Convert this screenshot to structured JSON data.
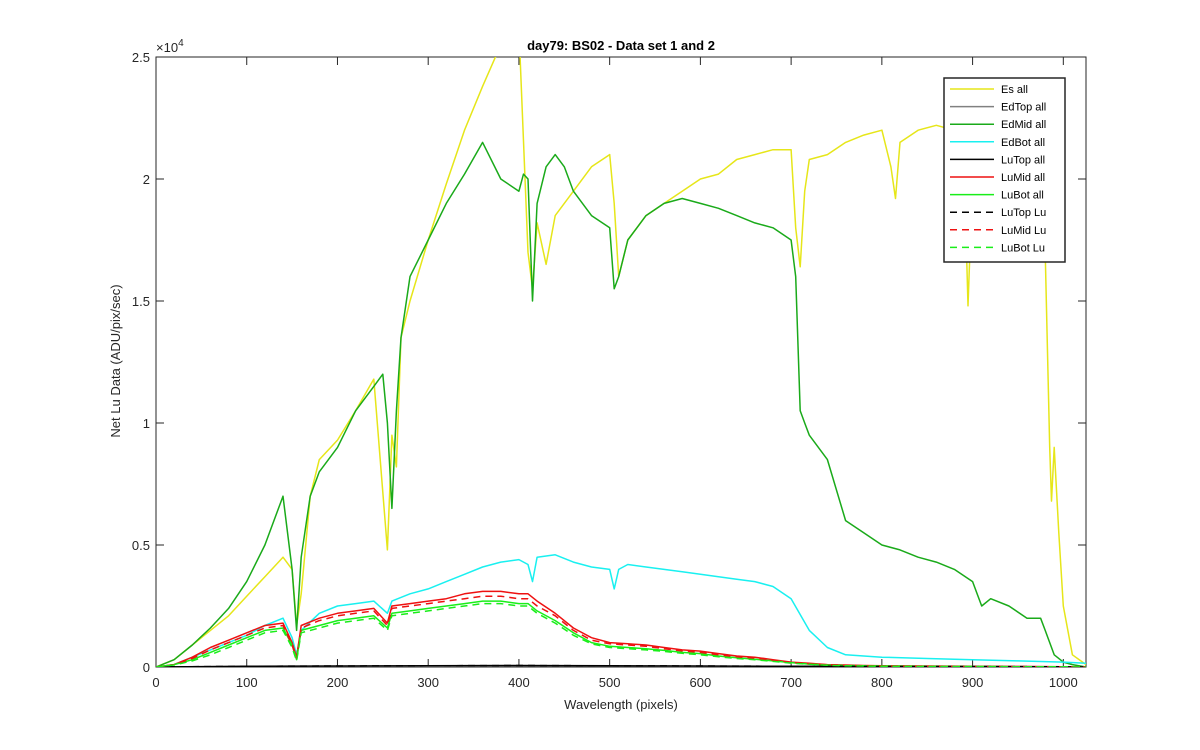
{
  "chart_data": {
    "type": "line",
    "title": "day79: BS02 - Data set 1 and 2",
    "xlabel": "Wavelength (pixels)",
    "ylabel": "Net Lu Data (ADU/pix/sec)",
    "y_exponent_base": "×10",
    "y_exponent_power": "4",
    "xlim": [
      0,
      1025
    ],
    "ylim": [
      0,
      2.5
    ],
    "xticks": [
      0,
      100,
      200,
      300,
      400,
      500,
      600,
      700,
      800,
      900,
      1000
    ],
    "xtick_labels": [
      "0",
      "100",
      "200",
      "300",
      "400",
      "500",
      "600",
      "700",
      "800",
      "900",
      "1000"
    ],
    "yticks": [
      0,
      0.5,
      1,
      1.5,
      2,
      2.5
    ],
    "ytick_labels": [
      "0",
      "0.5",
      "1",
      "1.5",
      "2",
      "2.5"
    ],
    "grid": false,
    "legend_position": "top-right",
    "series": [
      {
        "name": "Es  all",
        "color": "#e6e619",
        "dash": "solid",
        "x": [
          0,
          20,
          40,
          60,
          80,
          100,
          120,
          140,
          150,
          155,
          160,
          170,
          180,
          200,
          220,
          240,
          255,
          260,
          265,
          270,
          280,
          300,
          320,
          340,
          360,
          380,
          400,
          410,
          415,
          420,
          430,
          440,
          460,
          480,
          500,
          505,
          510,
          520,
          540,
          560,
          580,
          600,
          620,
          640,
          660,
          680,
          700,
          705,
          710,
          715,
          720,
          740,
          760,
          780,
          800,
          810,
          815,
          820,
          840,
          860,
          880,
          890,
          895,
          898,
          900,
          905,
          920,
          940,
          960,
          970,
          975,
          980,
          985,
          987,
          990,
          995,
          1000,
          1010,
          1025
        ],
        "y": [
          0,
          0.03,
          0.09,
          0.15,
          0.21,
          0.29,
          0.37,
          0.45,
          0.4,
          0.17,
          0.3,
          0.7,
          0.85,
          0.93,
          1.05,
          1.18,
          0.48,
          0.95,
          0.82,
          1.35,
          1.5,
          1.75,
          1.98,
          2.2,
          2.38,
          2.55,
          2.62,
          1.7,
          1.55,
          1.82,
          1.65,
          1.85,
          1.95,
          2.05,
          2.1,
          1.9,
          1.6,
          1.75,
          1.85,
          1.9,
          1.95,
          2.0,
          2.02,
          2.08,
          2.1,
          2.12,
          2.12,
          1.8,
          1.64,
          1.95,
          2.08,
          2.1,
          2.15,
          2.18,
          2.2,
          2.05,
          1.92,
          2.15,
          2.2,
          2.22,
          2.2,
          2.15,
          1.48,
          1.8,
          2.1,
          2.15,
          2.12,
          2.15,
          2.15,
          2.05,
          1.9,
          1.7,
          0.9,
          0.68,
          0.9,
          0.55,
          0.25,
          0.05,
          0.01
        ],
        "y_scale_note": "values are ×10^4"
      },
      {
        "name": "EdTop  all",
        "color": "#808080",
        "dash": "solid",
        "x": [
          0,
          100,
          200,
          300,
          400,
          500,
          600,
          700,
          800,
          900,
          1000,
          1025
        ],
        "y": [
          0,
          0.001,
          0.002,
          0.003,
          0.004,
          0.004,
          0.003,
          0.002,
          0.001,
          0.001,
          0,
          0
        ]
      },
      {
        "name": "EdMid  all",
        "color": "#1aaa1a",
        "dash": "solid",
        "x": [
          0,
          20,
          40,
          60,
          80,
          100,
          120,
          140,
          150,
          155,
          160,
          170,
          180,
          200,
          220,
          240,
          250,
          255,
          260,
          265,
          270,
          280,
          300,
          320,
          340,
          360,
          380,
          400,
          405,
          410,
          415,
          420,
          430,
          440,
          450,
          460,
          480,
          500,
          505,
          510,
          520,
          540,
          560,
          580,
          600,
          620,
          640,
          660,
          680,
          700,
          705,
          710,
          715,
          720,
          740,
          760,
          780,
          800,
          820,
          840,
          860,
          880,
          900,
          905,
          910,
          920,
          940,
          960,
          975,
          980,
          990,
          1000,
          1010,
          1025
        ],
        "y": [
          0,
          0.03,
          0.09,
          0.16,
          0.24,
          0.35,
          0.5,
          0.7,
          0.4,
          0.15,
          0.45,
          0.7,
          0.8,
          0.9,
          1.05,
          1.15,
          1.2,
          1.0,
          0.65,
          1.05,
          1.35,
          1.6,
          1.75,
          1.9,
          2.02,
          2.15,
          2.0,
          1.95,
          2.02,
          2.0,
          1.5,
          1.9,
          2.05,
          2.1,
          2.05,
          1.95,
          1.85,
          1.8,
          1.55,
          1.6,
          1.75,
          1.85,
          1.9,
          1.92,
          1.9,
          1.88,
          1.85,
          1.82,
          1.8,
          1.75,
          1.6,
          1.05,
          1.0,
          0.95,
          0.85,
          0.6,
          0.55,
          0.5,
          0.48,
          0.45,
          0.43,
          0.4,
          0.35,
          0.3,
          0.25,
          0.28,
          0.25,
          0.2,
          0.2,
          0.15,
          0.05,
          0.02,
          0.01,
          0
        ],
        "y_scale_note": "values are ×10^4"
      },
      {
        "name": "EdBot  all",
        "color": "#19f0f0",
        "dash": "solid",
        "x": [
          0,
          20,
          40,
          60,
          80,
          100,
          120,
          140,
          150,
          155,
          160,
          180,
          200,
          220,
          240,
          255,
          260,
          280,
          300,
          320,
          340,
          360,
          380,
          400,
          410,
          415,
          420,
          440,
          460,
          480,
          500,
          505,
          510,
          520,
          540,
          560,
          580,
          600,
          620,
          640,
          660,
          680,
          700,
          720,
          740,
          760,
          780,
          800,
          850,
          900,
          950,
          1000,
          1025
        ],
        "y": [
          0,
          0.01,
          0.04,
          0.07,
          0.1,
          0.13,
          0.17,
          0.2,
          0.12,
          0.05,
          0.15,
          0.22,
          0.25,
          0.26,
          0.27,
          0.22,
          0.27,
          0.3,
          0.32,
          0.35,
          0.38,
          0.41,
          0.43,
          0.44,
          0.42,
          0.35,
          0.45,
          0.46,
          0.43,
          0.41,
          0.4,
          0.32,
          0.4,
          0.42,
          0.41,
          0.4,
          0.39,
          0.38,
          0.37,
          0.36,
          0.35,
          0.33,
          0.28,
          0.15,
          0.08,
          0.05,
          0.045,
          0.04,
          0.035,
          0.03,
          0.025,
          0.02,
          0.015
        ],
        "y_scale_note": "values are ×10^4"
      },
      {
        "name": "LuTop  all",
        "color": "#000000",
        "dash": "solid",
        "x": [
          0,
          100,
          200,
          300,
          400,
          500,
          600,
          700,
          800,
          900,
          1000,
          1025
        ],
        "y": [
          0,
          0.003,
          0.004,
          0.005,
          0.006,
          0.005,
          0.004,
          0.003,
          0.002,
          0.002,
          0.001,
          0
        ]
      },
      {
        "name": "LuMid  all",
        "color": "#ee1111",
        "dash": "solid",
        "x": [
          0,
          20,
          40,
          60,
          80,
          100,
          120,
          140,
          150,
          155,
          160,
          180,
          200,
          220,
          240,
          255,
          260,
          280,
          300,
          320,
          340,
          360,
          380,
          400,
          410,
          420,
          440,
          460,
          480,
          500,
          520,
          540,
          560,
          580,
          600,
          620,
          640,
          660,
          680,
          700,
          720,
          740,
          760,
          780,
          800,
          850,
          900,
          950,
          1000,
          1025
        ],
        "y": [
          0,
          0.01,
          0.04,
          0.08,
          0.11,
          0.14,
          0.17,
          0.18,
          0.1,
          0.04,
          0.17,
          0.2,
          0.22,
          0.23,
          0.24,
          0.18,
          0.25,
          0.26,
          0.27,
          0.28,
          0.3,
          0.31,
          0.31,
          0.3,
          0.3,
          0.27,
          0.22,
          0.16,
          0.12,
          0.1,
          0.095,
          0.09,
          0.08,
          0.07,
          0.065,
          0.055,
          0.045,
          0.04,
          0.03,
          0.02,
          0.015,
          0.01,
          0.008,
          0.006,
          0.005,
          0.004,
          0.003,
          0.002,
          0.001,
          0
        ]
      },
      {
        "name": "LuBot  all",
        "color": "#19ee19",
        "dash": "solid",
        "x": [
          0,
          20,
          40,
          60,
          80,
          100,
          120,
          140,
          150,
          155,
          160,
          180,
          200,
          220,
          240,
          255,
          260,
          280,
          300,
          320,
          340,
          360,
          380,
          400,
          410,
          420,
          440,
          460,
          480,
          500,
          520,
          540,
          560,
          580,
          600,
          620,
          640,
          660,
          680,
          700,
          720,
          740,
          760,
          780,
          800,
          850,
          900,
          950,
          1000,
          1025
        ],
        "y": [
          0,
          0.01,
          0.03,
          0.06,
          0.09,
          0.12,
          0.15,
          0.16,
          0.09,
          0.03,
          0.15,
          0.17,
          0.19,
          0.2,
          0.21,
          0.16,
          0.22,
          0.23,
          0.24,
          0.25,
          0.26,
          0.27,
          0.27,
          0.26,
          0.26,
          0.23,
          0.19,
          0.14,
          0.1,
          0.085,
          0.08,
          0.075,
          0.068,
          0.06,
          0.055,
          0.045,
          0.038,
          0.032,
          0.025,
          0.018,
          0.012,
          0.008,
          0.006,
          0.005,
          0.004,
          0.003,
          0.002,
          0.001,
          0.001,
          0
        ]
      },
      {
        "name": "LuTop  Lu",
        "color": "#000000",
        "dash": "dashed",
        "x": [
          0,
          100,
          200,
          300,
          400,
          500,
          600,
          700,
          800,
          900,
          1000,
          1025
        ],
        "y": [
          0,
          0.003,
          0.004,
          0.005,
          0.006,
          0.005,
          0.004,
          0.003,
          0.002,
          0.002,
          0.001,
          0
        ]
      },
      {
        "name": "LuMid  Lu",
        "color": "#ee1111",
        "dash": "dashed",
        "x": [
          0,
          20,
          40,
          60,
          80,
          100,
          120,
          140,
          150,
          155,
          160,
          180,
          200,
          220,
          240,
          255,
          260,
          280,
          300,
          320,
          340,
          360,
          380,
          400,
          410,
          420,
          440,
          460,
          480,
          500,
          520,
          540,
          560,
          580,
          600,
          620,
          640,
          660,
          680,
          700,
          720,
          740,
          760,
          780,
          800,
          850,
          900,
          950,
          1000,
          1025
        ],
        "y": [
          0,
          0.01,
          0.035,
          0.07,
          0.1,
          0.13,
          0.16,
          0.17,
          0.09,
          0.035,
          0.16,
          0.19,
          0.21,
          0.22,
          0.23,
          0.17,
          0.24,
          0.25,
          0.26,
          0.27,
          0.28,
          0.29,
          0.29,
          0.28,
          0.28,
          0.25,
          0.21,
          0.15,
          0.11,
          0.095,
          0.09,
          0.085,
          0.075,
          0.066,
          0.06,
          0.05,
          0.042,
          0.036,
          0.028,
          0.019,
          0.013,
          0.009,
          0.007,
          0.005,
          0.004,
          0.003,
          0.002,
          0.001,
          0.001,
          0
        ]
      },
      {
        "name": "LuBot  Lu",
        "color": "#19ee19",
        "dash": "dashed",
        "x": [
          0,
          20,
          40,
          60,
          80,
          100,
          120,
          140,
          150,
          155,
          160,
          180,
          200,
          220,
          240,
          255,
          260,
          280,
          300,
          320,
          340,
          360,
          380,
          400,
          410,
          420,
          440,
          460,
          480,
          500,
          520,
          540,
          560,
          580,
          600,
          620,
          640,
          660,
          680,
          700,
          720,
          740,
          760,
          780,
          800,
          850,
          900,
          950,
          1000,
          1025
        ],
        "y": [
          0,
          0.008,
          0.025,
          0.05,
          0.08,
          0.11,
          0.14,
          0.15,
          0.08,
          0.025,
          0.14,
          0.16,
          0.18,
          0.19,
          0.2,
          0.15,
          0.21,
          0.22,
          0.23,
          0.24,
          0.25,
          0.26,
          0.26,
          0.25,
          0.25,
          0.22,
          0.18,
          0.13,
          0.095,
          0.08,
          0.075,
          0.07,
          0.064,
          0.056,
          0.05,
          0.042,
          0.035,
          0.03,
          0.023,
          0.016,
          0.011,
          0.007,
          0.005,
          0.004,
          0.003,
          0.002,
          0.002,
          0.001,
          0.001,
          0
        ]
      }
    ]
  }
}
